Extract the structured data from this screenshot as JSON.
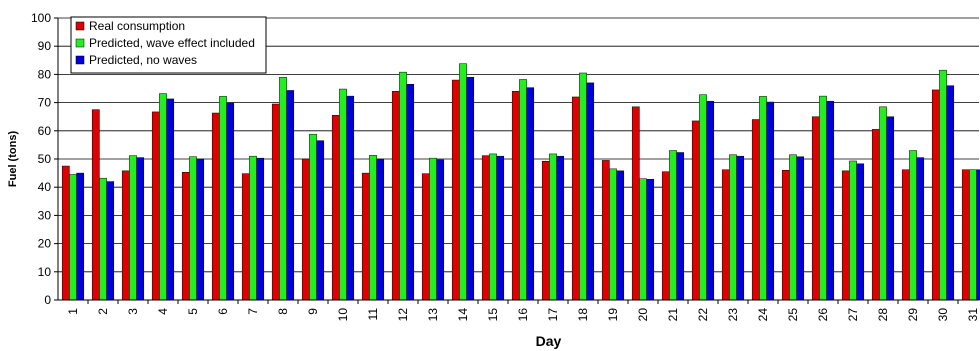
{
  "chart_data": {
    "type": "bar",
    "xlabel": "Day",
    "ylabel": "Fuel (tons)",
    "ylim": [
      0,
      100
    ],
    "yticks": [
      0,
      10,
      20,
      30,
      40,
      50,
      60,
      70,
      80,
      90,
      100
    ],
    "grid": true,
    "legend_position": "top-left",
    "categories": [
      "1",
      "2",
      "3",
      "4",
      "5",
      "6",
      "7",
      "8",
      "9",
      "10",
      "11",
      "12",
      "13",
      "14",
      "15",
      "16",
      "17",
      "18",
      "19",
      "20",
      "21",
      "22",
      "23",
      "24",
      "25",
      "26",
      "27",
      "28",
      "29",
      "30",
      "31"
    ],
    "series": [
      {
        "name": "Real consumption",
        "color": "#e00000",
        "values": [
          47.5,
          67.5,
          45.8,
          66.7,
          45.3,
          66.3,
          44.8,
          69.5,
          50.0,
          65.5,
          45.0,
          74.0,
          44.8,
          78.0,
          51.2,
          74.0,
          49.2,
          72.0,
          49.5,
          68.5,
          45.5,
          63.5,
          46.2,
          64.0,
          46.0,
          65.0,
          45.8,
          60.5,
          46.2,
          74.5,
          46.2
        ]
      },
      {
        "name": "Predicted, wave effect included",
        "color": "#22ee22",
        "values": [
          44.5,
          43.2,
          51.2,
          73.2,
          50.8,
          72.2,
          51.0,
          79.0,
          58.8,
          74.8,
          51.3,
          80.8,
          50.3,
          83.8,
          51.8,
          78.2,
          51.8,
          80.5,
          46.5,
          43.0,
          53.0,
          72.8,
          51.5,
          72.2,
          51.5,
          72.3,
          49.3,
          68.5,
          53.0,
          81.5,
          46.2
        ]
      },
      {
        "name": "Predicted, no waves",
        "color": "#0000dd",
        "values": [
          45.0,
          42.0,
          50.5,
          71.3,
          50.0,
          70.0,
          50.3,
          74.3,
          56.5,
          72.3,
          50.0,
          76.5,
          49.7,
          79.0,
          51.0,
          75.3,
          51.0,
          77.0,
          45.8,
          42.8,
          52.3,
          70.5,
          51.0,
          70.2,
          50.8,
          70.5,
          48.3,
          65.0,
          50.5,
          76.0,
          46.2
        ]
      }
    ]
  }
}
